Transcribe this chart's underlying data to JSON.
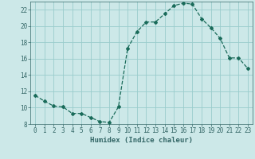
{
  "x": [
    0,
    1,
    2,
    3,
    4,
    5,
    6,
    7,
    8,
    9,
    10,
    11,
    12,
    13,
    14,
    15,
    16,
    17,
    18,
    19,
    20,
    21,
    22,
    23
  ],
  "y": [
    11.5,
    10.8,
    10.2,
    10.1,
    9.3,
    9.3,
    8.8,
    8.3,
    8.2,
    10.1,
    17.3,
    19.3,
    20.5,
    20.5,
    21.5,
    22.5,
    22.8,
    22.7,
    20.9,
    19.8,
    18.5,
    16.1,
    16.1,
    14.8
  ],
  "line_color": "#1a6b5a",
  "marker": "D",
  "markersize": 2.0,
  "linewidth": 0.9,
  "xlabel": "Humidex (Indice chaleur)",
  "xlim": [
    -0.5,
    23.5
  ],
  "ylim": [
    8,
    23
  ],
  "yticks": [
    8,
    10,
    12,
    14,
    16,
    18,
    20,
    22
  ],
  "xticks": [
    0,
    1,
    2,
    3,
    4,
    5,
    6,
    7,
    8,
    9,
    10,
    11,
    12,
    13,
    14,
    15,
    16,
    17,
    18,
    19,
    20,
    21,
    22,
    23
  ],
  "bg_color": "#cce8e8",
  "grid_color": "#99cccc",
  "axis_color": "#336666",
  "tick_color": "#336666",
  "label_color": "#336666",
  "tick_fontsize": 5.5,
  "xlabel_fontsize": 6.5
}
